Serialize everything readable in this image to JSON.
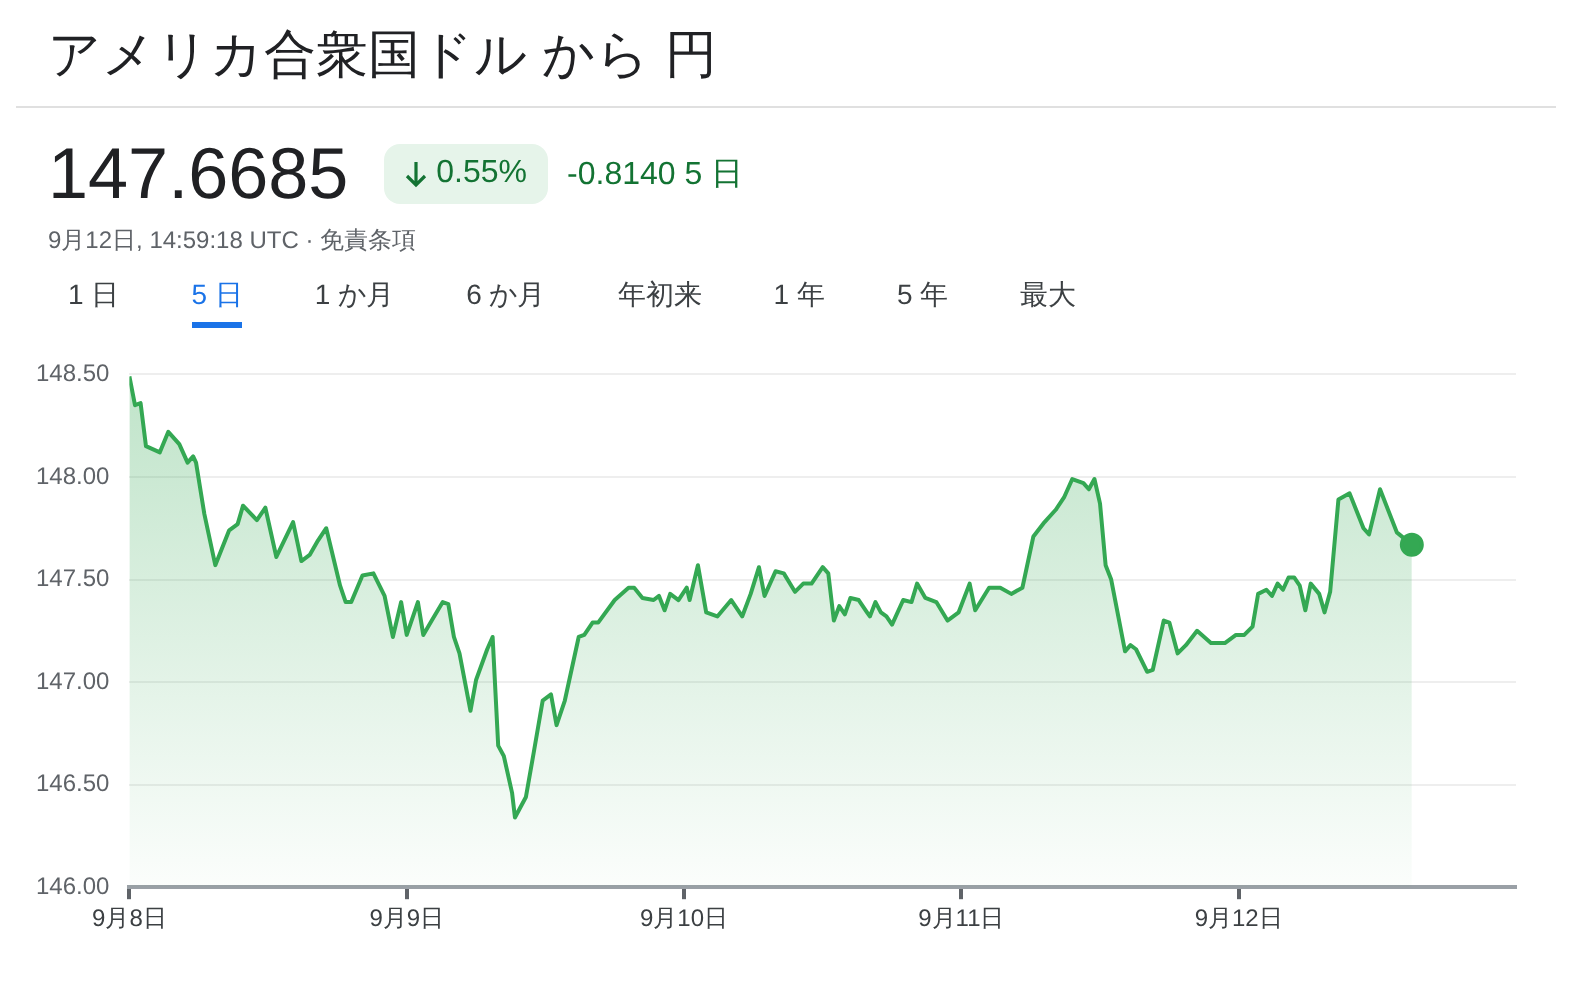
{
  "chart_data": {
    "type": "area",
    "title": "アメリカ合衆国ドル から 円",
    "annotations": [
      "147.6685",
      "0.55%",
      "-0.8140 5 日",
      "9月12日, 14:59:18 UTC · 免責条項",
      "1 日",
      "5 日",
      "1 か月",
      "6 か月",
      "年初来",
      "1 年",
      "5 年",
      "最大"
    ],
    "x": [
      "--09-08T00:00",
      "--09-08T00:29",
      "--09-08T00:58",
      "--09-08T01:26",
      "--09-08T02:38",
      "--09-08T03:22",
      "--09-08T04:19",
      "--09-08T05:02",
      "--09-08T05:31",
      "--09-08T05:46",
      "--09-08T06:29",
      "--09-08T07:26",
      "--09-08T08:38",
      "--09-08T09:22",
      "--09-08T09:50",
      "--09-08T11:02",
      "--09-08T11:46",
      "--09-08T12:43",
      "--09-08T14:10",
      "--09-08T14:53",
      "--09-08T15:36",
      "--09-08T16:19",
      "--09-08T17:02",
      "--09-08T18:14",
      "--09-08T18:43",
      "--09-08T19:12",
      "--09-08T20:10",
      "--09-08T21:07",
      "--09-08T22:05",
      "--09-08T22:48",
      "--09-08T23:31",
      "--09-09T00:00",
      "--09-09T00:58",
      "--09-09T01:26",
      "--09-09T02:10",
      "--09-09T03:07",
      "--09-09T03:36",
      "--09-09T04:05",
      "--09-09T04:34",
      "--09-09T05:31",
      "--09-09T06:00",
      "--09-09T06:58",
      "--09-09T07:26",
      "--09-09T07:55",
      "--09-09T08:24",
      "--09-09T09:07",
      "--09-09T09:22",
      "--09-09T10:19",
      "--09-09T11:02",
      "--09-09T11:46",
      "--09-09T12:29",
      "--09-09T12:58",
      "--09-09T13:41",
      "--09-09T14:53",
      "--09-09T15:22",
      "--09-09T16:05",
      "--09-09T16:34",
      "--09-09T18:00",
      "--09-09T19:12",
      "--09-09T19:41",
      "--09-09T20:24",
      "--09-09T21:22",
      "--09-09T21:50",
      "--09-09T22:19",
      "--09-09T22:48",
      "--09-09T23:31",
      "--09-10T00:14",
      "--09-10T00:29",
      "--09-10T01:12",
      "--09-10T01:55",
      "--09-10T02:53",
      "--09-10T04:05",
      "--09-10T05:02",
      "--09-10T05:46",
      "--09-10T06:29",
      "--09-10T06:58",
      "--09-10T07:55",
      "--09-10T08:38",
      "--09-10T09:36",
      "--09-10T10:19",
      "--09-10T11:02",
      "--09-10T12:00",
      "--09-10T12:29",
      "--09-10T12:58",
      "--09-10T13:26",
      "--09-10T13:55",
      "--09-10T14:24",
      "--09-10T15:07",
      "--09-10T15:50",
      "--09-10T16:05",
      "--09-10T16:34",
      "--09-10T17:02",
      "--09-10T17:31",
      "--09-10T18:00",
      "--09-10T18:58",
      "--09-10T19:41",
      "--09-10T20:10",
      "--09-10T20:53",
      "--09-10T21:50",
      "--09-10T22:48",
      "--09-10T23:46",
      "--09-11T00:43",
      "--09-11T01:12",
      "--09-11T02:24",
      "--09-11T03:22",
      "--09-11T04:19",
      "--09-11T05:17",
      "--09-11T06:14",
      "--09-11T07:12",
      "--09-11T08:10",
      "--09-11T08:53",
      "--09-11T09:36",
      "--09-11T10:34",
      "--09-11T11:02",
      "--09-11T11:31",
      "--09-11T12:00",
      "--09-11T12:29",
      "--09-11T12:58",
      "--09-11T14:10",
      "--09-11T14:38",
      "--09-11T15:07",
      "--09-11T16:05",
      "--09-11T16:34",
      "--09-11T17:31",
      "--09-11T18:00",
      "--09-11T18:43",
      "--09-11T19:26",
      "--09-11T20:24",
      "--09-11T21:36",
      "--09-11T22:48",
      "--09-11T23:46",
      "--09-12T00:29",
      "--09-12T01:12",
      "--09-12T01:41",
      "--09-12T02:24",
      "--09-12T02:53",
      "--09-12T03:22",
      "--09-12T03:50",
      "--09-12T04:19",
      "--09-12T04:48",
      "--09-12T05:17",
      "--09-12T05:46",
      "--09-12T06:14",
      "--09-12T06:58",
      "--09-12T07:26",
      "--09-12T07:55",
      "--09-12T08:38",
      "--09-12T09:36",
      "--09-12T10:48",
      "--09-12T11:17",
      "--09-12T12:14",
      "--09-12T13:41",
      "--09-12T14:59"
    ],
    "series": [
      {
        "color": "#34a853",
        "values": [
          148.49,
          148.35,
          148.36,
          148.15,
          148.12,
          148.22,
          148.16,
          148.07,
          148.1,
          148.07,
          147.82,
          147.57,
          147.74,
          147.77,
          147.86,
          147.79,
          147.85,
          147.61,
          147.78,
          147.59,
          147.62,
          147.69,
          147.75,
          147.47,
          147.39,
          147.39,
          147.52,
          147.53,
          147.42,
          147.22,
          147.39,
          147.23,
          147.39,
          147.23,
          147.3,
          147.39,
          147.38,
          147.22,
          147.14,
          146.86,
          147.01,
          147.16,
          147.22,
          146.69,
          146.64,
          146.46,
          146.34,
          146.44,
          146.67,
          146.91,
          146.94,
          146.79,
          146.91,
          147.22,
          147.23,
          147.29,
          147.29,
          147.4,
          147.46,
          147.46,
          147.41,
          147.4,
          147.42,
          147.35,
          147.43,
          147.4,
          147.46,
          147.4,
          147.57,
          147.34,
          147.32,
          147.4,
          147.32,
          147.43,
          147.56,
          147.42,
          147.54,
          147.53,
          147.44,
          147.48,
          147.48,
          147.56,
          147.53,
          147.3,
          147.37,
          147.33,
          147.41,
          147.4,
          147.34,
          147.32,
          147.39,
          147.34,
          147.32,
          147.28,
          147.4,
          147.39,
          147.48,
          147.41,
          147.39,
          147.3,
          147.34,
          147.48,
          147.35,
          147.46,
          147.46,
          147.43,
          147.46,
          147.71,
          147.78,
          147.84,
          147.9,
          147.99,
          147.97,
          147.94,
          147.99,
          147.87,
          147.57,
          147.5,
          147.15,
          147.18,
          147.16,
          147.05,
          147.06,
          147.3,
          147.29,
          147.14,
          147.18,
          147.25,
          147.19,
          147.19,
          147.23,
          147.23,
          147.27,
          147.43,
          147.45,
          147.42,
          147.48,
          147.45,
          147.51,
          147.51,
          147.47,
          147.35,
          147.48,
          147.43,
          147.34,
          147.44,
          147.89,
          147.92,
          147.75,
          147.72,
          147.94,
          147.73,
          147.67
        ]
      }
    ],
    "xlim": [
      "--09-08",
      "--09-13"
    ],
    "xticks": [
      {
        "value": "--09-08",
        "label": "9月8日"
      },
      {
        "value": "--09-09",
        "label": "9月9日"
      },
      {
        "value": "--09-10",
        "label": "9月10日"
      },
      {
        "value": "--09-11",
        "label": "9月11日"
      },
      {
        "value": "--09-12",
        "label": "9月12日"
      }
    ],
    "ylim": [
      146,
      148.5
    ],
    "yticks": [
      {
        "value": 146,
        "label": "146.00"
      },
      {
        "value": 146.5,
        "label": "146.50"
      },
      {
        "value": 147,
        "label": "147.00"
      },
      {
        "value": 147.5,
        "label": "147.50"
      },
      {
        "value": 148,
        "label": "148.00"
      },
      {
        "value": 148.5,
        "label": "148.50"
      }
    ],
    "grid": "y",
    "legend": false,
    "marker": "none",
    "line_style": "solid"
  }
}
